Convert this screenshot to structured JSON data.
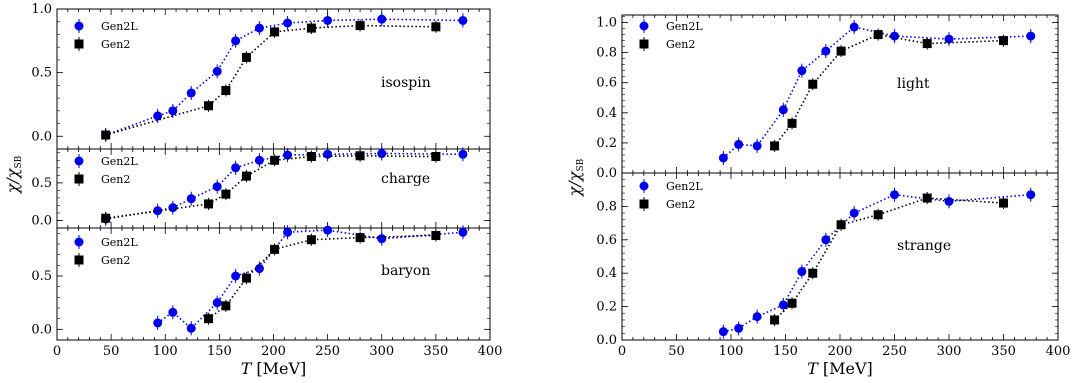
{
  "chart_data": [
    {
      "type": "scatter",
      "figure": "left",
      "xlabel": "T",
      "xunit": "[MeV]",
      "ylabel": "χ/χ",
      "ylabel_sub": "SB",
      "xlim": [
        0,
        400
      ],
      "xticks": [
        "0",
        "50",
        "100",
        "150",
        "200",
        "250",
        "300",
        "350",
        "400"
      ],
      "grid": false,
      "legend_position": "top-left",
      "panels": [
        {
          "annotation": "isospin",
          "ylim": [
            -0.1,
            1.0
          ],
          "yticks": [
            "0.0",
            "0.5",
            "1.0"
          ],
          "series": [
            {
              "name": "Gen2L",
              "color": "#0000ee",
              "marker": "circle",
              "x": [
                45,
                93,
                107,
                124,
                148,
                165,
                187,
                213,
                250,
                300,
                375
              ],
              "y": [
                0.01,
                0.16,
                0.2,
                0.34,
                0.51,
                0.75,
                0.85,
                0.89,
                0.91,
                0.92,
                0.91
              ]
            },
            {
              "name": "Gen2",
              "color": "#000000",
              "marker": "square",
              "x": [
                45,
                140,
                156,
                175,
                201,
                235,
                280,
                350
              ],
              "y": [
                0.01,
                0.24,
                0.36,
                0.62,
                0.82,
                0.85,
                0.87,
                0.86
              ]
            }
          ]
        },
        {
          "annotation": "charge",
          "ylim": [
            -0.1,
            0.95
          ],
          "yticks": [
            "0.0",
            "0.5"
          ],
          "series": [
            {
              "name": "Gen2L",
              "color": "#0000ee",
              "marker": "circle",
              "x": [
                45,
                93,
                107,
                124,
                148,
                165,
                187,
                213,
                250,
                300,
                375
              ],
              "y": [
                0.02,
                0.13,
                0.17,
                0.29,
                0.45,
                0.7,
                0.8,
                0.87,
                0.88,
                0.89,
                0.88
              ]
            },
            {
              "name": "Gen2",
              "color": "#000000",
              "marker": "square",
              "x": [
                45,
                140,
                156,
                175,
                201,
                235,
                280,
                350
              ],
              "y": [
                0.03,
                0.22,
                0.35,
                0.59,
                0.8,
                0.85,
                0.86,
                0.85
              ]
            }
          ]
        },
        {
          "annotation": "baryon",
          "ylim": [
            -0.1,
            0.95
          ],
          "yticks": [
            "0.0",
            "0.5"
          ],
          "series": [
            {
              "name": "Gen2L",
              "color": "#0000ee",
              "marker": "circle",
              "x": [
                93,
                107,
                124,
                148,
                165,
                187,
                213,
                250,
                300,
                375
              ],
              "y": [
                0.06,
                0.16,
                0.01,
                0.25,
                0.5,
                0.57,
                0.91,
                0.93,
                0.85,
                0.91
              ]
            },
            {
              "name": "Gen2",
              "color": "#000000",
              "marker": "square",
              "x": [
                140,
                156,
                175,
                201,
                235,
                280,
                350
              ],
              "y": [
                0.1,
                0.22,
                0.48,
                0.75,
                0.84,
                0.86,
                0.88
              ]
            }
          ]
        }
      ]
    },
    {
      "type": "scatter",
      "figure": "right",
      "xlabel": "T",
      "xunit": "[MeV]",
      "ylabel": "χ/χ",
      "ylabel_sub": "SB",
      "xlim": [
        0,
        400
      ],
      "xticks": [
        "0",
        "50",
        "100",
        "150",
        "200",
        "250",
        "300",
        "350",
        "400"
      ],
      "grid": false,
      "legend_position": "top-left",
      "panels": [
        {
          "annotation": "light",
          "ylim": [
            0.0,
            1.05
          ],
          "yticks": [
            "0.0",
            "0.2",
            "0.4",
            "0.6",
            "0.8",
            "1.0"
          ],
          "series": [
            {
              "name": "Gen2L",
              "color": "#0000ee",
              "marker": "circle",
              "x": [
                93,
                107,
                124,
                148,
                165,
                187,
                213,
                250,
                300,
                375
              ],
              "y": [
                0.1,
                0.19,
                0.18,
                0.42,
                0.68,
                0.81,
                0.97,
                0.91,
                0.89,
                0.91
              ]
            },
            {
              "name": "Gen2",
              "color": "#000000",
              "marker": "square",
              "x": [
                140,
                156,
                175,
                201,
                235,
                280,
                350
              ],
              "y": [
                0.18,
                0.33,
                0.59,
                0.81,
                0.92,
                0.86,
                0.88
              ]
            }
          ]
        },
        {
          "annotation": "strange",
          "ylim": [
            0.0,
            1.0
          ],
          "yticks": [
            "0.0",
            "0.2",
            "0.4",
            "0.6",
            "0.8"
          ],
          "series": [
            {
              "name": "Gen2L",
              "color": "#0000ee",
              "marker": "circle",
              "x": [
                93,
                107,
                124,
                148,
                165,
                187,
                213,
                250,
                300,
                375
              ],
              "y": [
                0.05,
                0.07,
                0.14,
                0.21,
                0.41,
                0.6,
                0.76,
                0.87,
                0.83,
                0.87
              ]
            },
            {
              "name": "Gen2",
              "color": "#000000",
              "marker": "square",
              "x": [
                140,
                156,
                175,
                201,
                235,
                280,
                350
              ],
              "y": [
                0.12,
                0.22,
                0.4,
                0.69,
                0.75,
                0.85,
                0.82
              ]
            }
          ]
        }
      ]
    }
  ]
}
